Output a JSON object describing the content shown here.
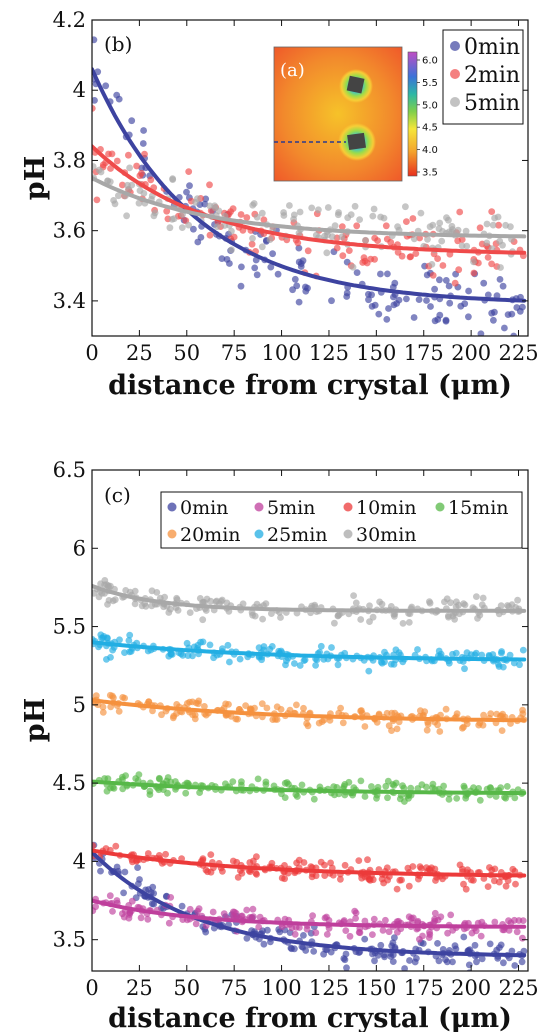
{
  "chart_data": [
    {
      "type": "scatter",
      "panel_label": "(b)",
      "xlabel": "distance from crystal (μm)",
      "ylabel": "pH",
      "xlim": [
        0,
        230
      ],
      "ylim": [
        3.3,
        4.2
      ],
      "xticks": [
        "0",
        "25",
        "50",
        "75",
        "100",
        "125",
        "150",
        "175",
        "200",
        "225"
      ],
      "yticks": [
        "3.4",
        "3.6",
        "3.8",
        "4",
        "4.2"
      ],
      "legend_position": "top-right",
      "series": [
        {
          "name": "0min",
          "color": "#3d43a0",
          "fit": {
            "base": 3.39,
            "amp": 0.67,
            "tau": 55
          },
          "scatter_sd": 0.045
        },
        {
          "name": "2min",
          "color": "#ef4a4a",
          "fit": {
            "base": 3.53,
            "amp": 0.31,
            "tau": 60
          },
          "scatter_sd": 0.04
        },
        {
          "name": "5min",
          "color": "#a8a8a8",
          "fit": {
            "base": 3.58,
            "amp": 0.17,
            "tau": 60
          },
          "scatter_sd": 0.035
        }
      ],
      "inset": {
        "label": "(a)",
        "colorbar_ticks": [
          "6.0",
          "5.5",
          "5.0",
          "4.5",
          "4.0",
          "3.5"
        ]
      }
    },
    {
      "type": "scatter",
      "panel_label": "(c)",
      "xlabel": "distance from crystal (μm)",
      "ylabel": "pH",
      "xlim": [
        0,
        230
      ],
      "ylim": [
        3.3,
        6.5
      ],
      "xticks": [
        "0",
        "25",
        "50",
        "75",
        "100",
        "125",
        "150",
        "175",
        "200",
        "225"
      ],
      "yticks": [
        "3.5",
        "4",
        "4.5",
        "5",
        "5.5",
        "6",
        "6.5"
      ],
      "legend_position": "top-right",
      "series": [
        {
          "name": "0min",
          "color": "#3d43a0",
          "fit": {
            "base": 3.39,
            "amp": 0.67,
            "tau": 55
          },
          "scatter_sd": 0.045
        },
        {
          "name": "5min",
          "color": "#bf3f9c",
          "fit": {
            "base": 3.58,
            "amp": 0.17,
            "tau": 55
          },
          "scatter_sd": 0.035
        },
        {
          "name": "10min",
          "color": "#ec3a3a",
          "fit": {
            "base": 3.9,
            "amp": 0.17,
            "tau": 80
          },
          "scatter_sd": 0.035
        },
        {
          "name": "15min",
          "color": "#57b848",
          "fit": {
            "base": 4.43,
            "amp": 0.08,
            "tau": 90
          },
          "scatter_sd": 0.03
        },
        {
          "name": "20min",
          "color": "#f5913e",
          "fit": {
            "base": 4.89,
            "amp": 0.14,
            "tau": 90
          },
          "scatter_sd": 0.03
        },
        {
          "name": "25min",
          "color": "#22aee3",
          "fit": {
            "base": 5.28,
            "amp": 0.12,
            "tau": 90
          },
          "scatter_sd": 0.03
        },
        {
          "name": "30min",
          "color": "#a8a8a8",
          "fit": {
            "base": 5.6,
            "amp": 0.16,
            "tau": 35
          },
          "scatter_sd": 0.035
        }
      ]
    }
  ]
}
